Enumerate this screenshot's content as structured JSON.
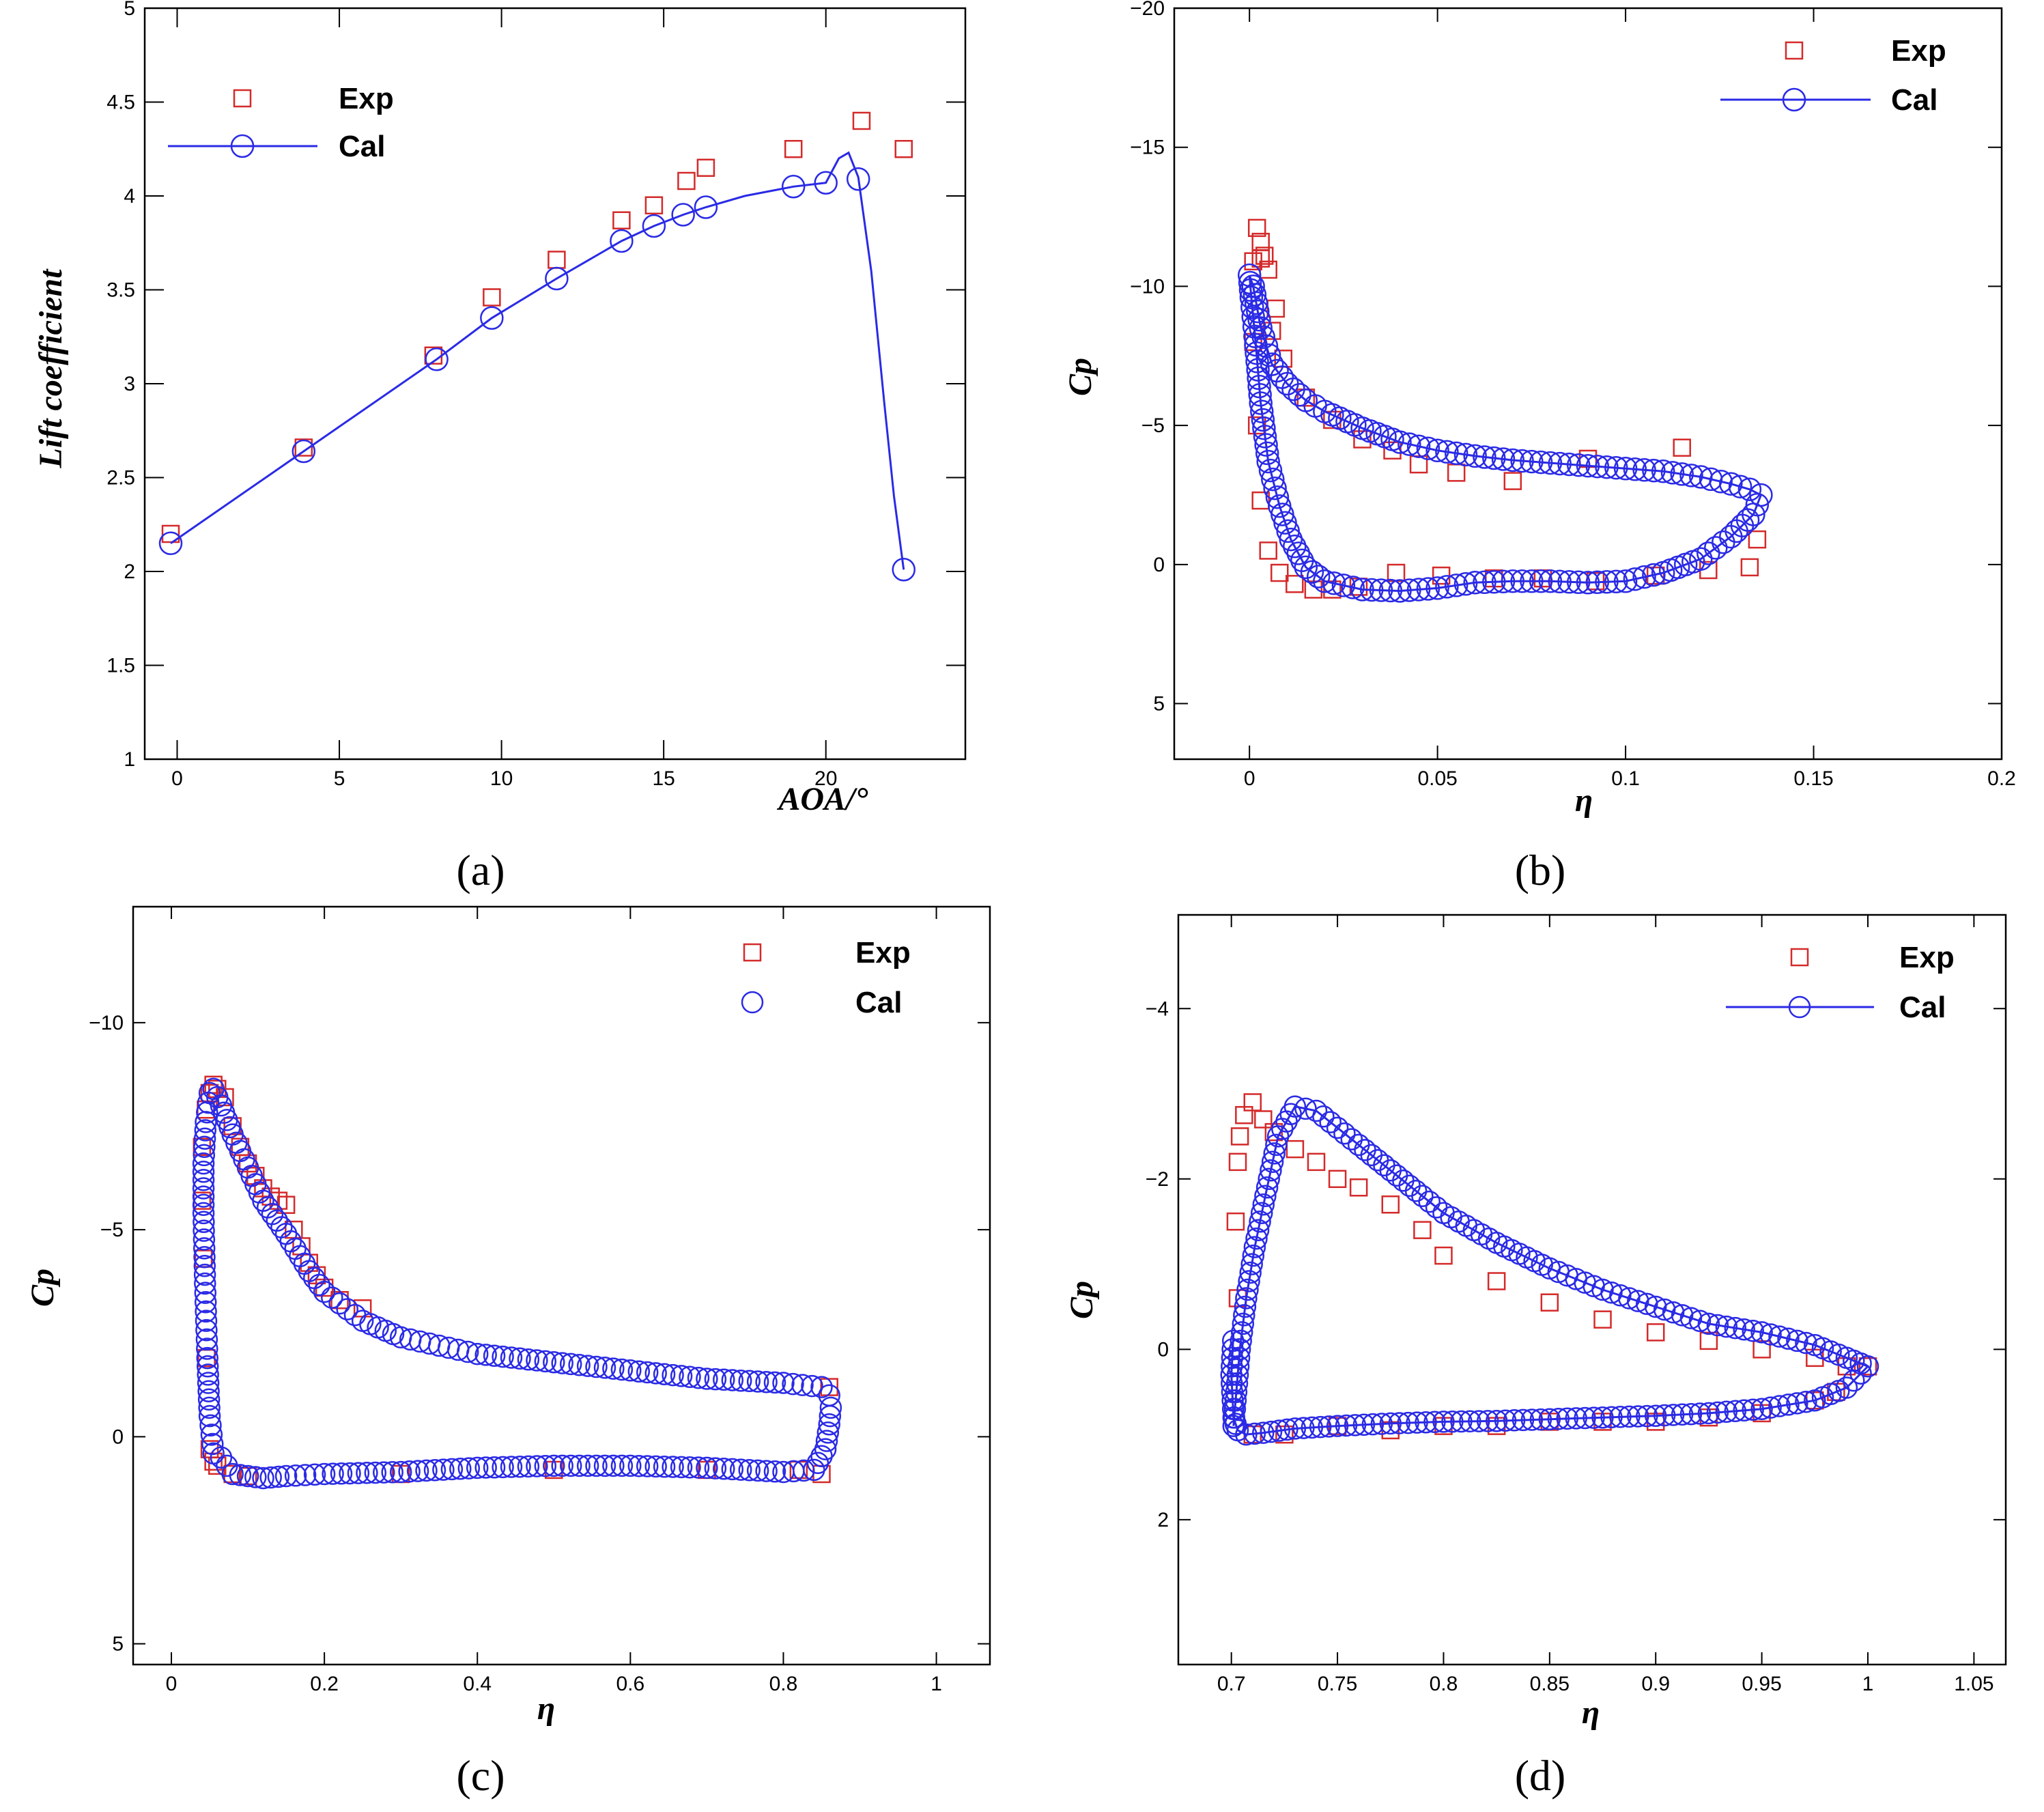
{
  "colors": {
    "exp": "#d42a2a",
    "cal": "#2a2ae6",
    "axis": "#000000"
  },
  "chart_data": [
    {
      "id": "a",
      "type": "scatter",
      "panel_label": "(a)",
      "xlabel": "AOA/°",
      "ylabel": "Lift coefficient",
      "xlim": [
        -1,
        24.3
      ],
      "ylim": [
        1,
        5
      ],
      "xticks": [
        0,
        5,
        10,
        15,
        20
      ],
      "yticks": [
        1,
        1.5,
        2,
        2.5,
        3,
        3.5,
        4,
        4.5,
        5
      ],
      "xtick_labels": [
        "0",
        "5",
        "10",
        "15",
        "20"
      ],
      "ytick_labels": [
        "1",
        "1.5",
        "2",
        "2.5",
        "3",
        "3.5",
        "4",
        "4.5",
        "5"
      ],
      "legend_position": "top-left",
      "series": [
        {
          "name": "Exp",
          "style": "square",
          "x": [
            -0.2,
            3.9,
            7.9,
            9.7,
            11.7,
            13.7,
            14.7,
            15.7,
            16.3,
            19.0,
            21.1,
            22.4
          ],
          "y": [
            2.2,
            2.66,
            3.15,
            3.46,
            3.66,
            3.87,
            3.95,
            4.08,
            4.15,
            4.25,
            4.4,
            4.25
          ]
        },
        {
          "name": "Cal",
          "style": "circle-line",
          "x": [
            -0.2,
            3.9,
            8.0,
            9.7,
            11.7,
            13.7,
            14.7,
            15.6,
            16.3,
            19.0,
            20.0,
            21.0,
            22.4
          ],
          "y": [
            2.15,
            2.64,
            3.13,
            3.35,
            3.56,
            3.76,
            3.84,
            3.9,
            3.94,
            4.05,
            4.07,
            4.09,
            2.01
          ],
          "line_x": [
            -0.2,
            3.9,
            8.0,
            9.7,
            11.7,
            13.7,
            14.7,
            15.6,
            16.3,
            17.5,
            19.0,
            20.0,
            20.4,
            20.7,
            21.0,
            21.4,
            21.8,
            22.1,
            22.4
          ],
          "line_y": [
            2.15,
            2.64,
            3.13,
            3.35,
            3.56,
            3.76,
            3.84,
            3.9,
            3.94,
            4.0,
            4.05,
            4.07,
            4.2,
            4.23,
            4.1,
            3.6,
            2.9,
            2.4,
            2.01
          ]
        }
      ]
    },
    {
      "id": "b",
      "type": "scatter",
      "panel_label": "(b)",
      "xlabel": "η",
      "ylabel": "Cp",
      "xlim": [
        -0.02,
        0.2
      ],
      "ylim": [
        -20,
        7
      ],
      "y_inverted": true,
      "xticks": [
        0,
        0.05,
        0.1,
        0.15,
        0.2
      ],
      "yticks": [
        -20,
        -15,
        -10,
        -5,
        0,
        5
      ],
      "xtick_labels": [
        "0",
        "0.05",
        "0.1",
        "0.15",
        "0.2"
      ],
      "ytick_labels": [
        "−20",
        "−15",
        "−10",
        "−5",
        "0",
        "5"
      ],
      "legend_position": "top-right",
      "series": [
        {
          "name": "Exp",
          "style": "square",
          "x": [
            0.002,
            0.003,
            0.004,
            0.005,
            0.007,
            0.001,
            0.001,
            0.002,
            0.003,
            0.005,
            0.008,
            0.012,
            0.017,
            0.022,
            0.029,
            0.039,
            0.051,
            0.065,
            0.078,
            0.092,
            0.108,
            0.122,
            0.133,
            0.135,
            0.003,
            0.006,
            0.009,
            0.015,
            0.022,
            0.03,
            0.038,
            0.045,
            0.055,
            0.07,
            0.09,
            0.115
          ],
          "y": [
            -12.1,
            -11.6,
            -11.1,
            -10.6,
            -9.2,
            -10.9,
            -8.0,
            -5.0,
            -2.3,
            -0.5,
            0.3,
            0.7,
            0.9,
            0.9,
            0.8,
            0.3,
            0.4,
            0.5,
            0.5,
            0.6,
            0.4,
            0.2,
            0.1,
            -0.9,
            -11.0,
            -8.4,
            -7.4,
            -6.0,
            -5.2,
            -4.5,
            -4.1,
            -3.6,
            -3.3,
            -3.0,
            -3.8,
            -4.2
          ]
        },
        {
          "name": "Cal",
          "style": "circle-line",
          "closed_loop": true,
          "x": [
            0.0,
            0.001,
            0.003,
            0.006,
            0.01,
            0.015,
            0.02,
            0.03,
            0.04,
            0.05,
            0.06,
            0.07,
            0.08,
            0.09,
            0.1,
            0.11,
            0.12,
            0.128,
            0.133,
            0.136,
            0.134,
            0.128,
            0.12,
            0.11,
            0.1,
            0.09,
            0.08,
            0.07,
            0.06,
            0.05,
            0.04,
            0.03,
            0.02,
            0.015,
            0.011,
            0.008,
            0.005,
            0.003,
            0.0015,
            0.0005,
            0.0
          ],
          "y": [
            -10.4,
            -10.0,
            -8.5,
            -7.2,
            -6.5,
            -5.9,
            -5.5,
            -4.9,
            -4.4,
            -4.1,
            -3.9,
            -3.75,
            -3.65,
            -3.55,
            -3.45,
            -3.35,
            -3.15,
            -2.9,
            -2.7,
            -2.5,
            -1.8,
            -1.0,
            -0.2,
            0.3,
            0.6,
            0.65,
            0.6,
            0.6,
            0.65,
            0.85,
            0.95,
            0.9,
            0.6,
            0.1,
            -0.9,
            -2.1,
            -3.7,
            -5.8,
            -8.2,
            -9.6,
            -10.4
          ]
        }
      ]
    },
    {
      "id": "c",
      "type": "scatter",
      "panel_label": "(c)",
      "xlabel": "η",
      "ylabel": "Cp",
      "xlim": [
        -0.05,
        1.07
      ],
      "ylim": [
        -12.8,
        5.5
      ],
      "y_inverted": true,
      "xticks": [
        0,
        0.2,
        0.4,
        0.6,
        0.8,
        1
      ],
      "yticks": [
        -10,
        -5,
        0,
        5
      ],
      "xtick_labels": [
        "0",
        "0.2",
        "0.4",
        "0.6",
        "0.8",
        "1"
      ],
      "ytick_labels": [
        "−10",
        "−5",
        "0",
        "5"
      ],
      "legend_position": "top-right",
      "series": [
        {
          "name": "Exp",
          "style": "square",
          "x": [
            0.04,
            0.045,
            0.05,
            0.055,
            0.06,
            0.07,
            0.08,
            0.09,
            0.1,
            0.11,
            0.12,
            0.13,
            0.14,
            0.15,
            0.16,
            0.17,
            0.18,
            0.19,
            0.2,
            0.22,
            0.25,
            0.04,
            0.042,
            0.046,
            0.05,
            0.055,
            0.06,
            0.08,
            0.1,
            0.3,
            0.5,
            0.7,
            0.82,
            0.85,
            0.86
          ],
          "y": [
            -7.0,
            -7.9,
            -8.3,
            -8.5,
            -8.4,
            -8.2,
            -7.5,
            -7.0,
            -6.6,
            -6.3,
            -6.0,
            -5.8,
            -5.7,
            -5.6,
            -5.0,
            -4.6,
            -4.2,
            -3.9,
            -3.6,
            -3.3,
            -3.1,
            -5.7,
            -4.3,
            -1.9,
            0.3,
            0.6,
            0.7,
            0.9,
            0.95,
            0.9,
            0.8,
            0.8,
            0.8,
            0.9,
            -1.2
          ]
        },
        {
          "name": "Cal",
          "style": "circle",
          "closed_loop": true,
          "x": [
            0.042,
            0.045,
            0.05,
            0.055,
            0.065,
            0.08,
            0.1,
            0.12,
            0.15,
            0.18,
            0.2,
            0.25,
            0.3,
            0.35,
            0.4,
            0.5,
            0.6,
            0.7,
            0.8,
            0.85,
            0.86,
            0.862,
            0.86,
            0.855,
            0.84,
            0.8,
            0.7,
            0.6,
            0.5,
            0.4,
            0.3,
            0.2,
            0.15,
            0.12,
            0.1,
            0.08,
            0.065,
            0.055,
            0.05,
            0.047,
            0.044,
            0.042,
            0.042
          ],
          "y": [
            -6.6,
            -7.6,
            -8.3,
            -8.4,
            -8.0,
            -7.3,
            -6.5,
            -5.7,
            -4.9,
            -4.0,
            -3.5,
            -2.8,
            -2.4,
            -2.2,
            -2.0,
            -1.8,
            -1.6,
            -1.4,
            -1.3,
            -1.2,
            -1.0,
            -0.7,
            -0.3,
            0.3,
            0.8,
            0.85,
            0.75,
            0.7,
            0.7,
            0.75,
            0.85,
            0.9,
            0.95,
            1.0,
            0.95,
            0.9,
            0.5,
            0.4,
            -0.5,
            -1.9,
            -3.7,
            -5.4,
            -6.6
          ]
        }
      ]
    },
    {
      "id": "d",
      "type": "scatter",
      "panel_label": "(d)",
      "xlabel": "η",
      "ylabel": "Cp",
      "xlim": [
        0.675,
        1.065
      ],
      "ylim": [
        -5.1,
        3.7
      ],
      "y_inverted": true,
      "xticks": [
        0.7,
        0.75,
        0.8,
        0.85,
        0.9,
        0.95,
        1,
        1.05
      ],
      "yticks": [
        -4,
        -2,
        0,
        2
      ],
      "xtick_labels": [
        "0.7",
        "0.75",
        "0.8",
        "0.85",
        "0.9",
        "0.95",
        "1",
        "1.05"
      ],
      "ytick_labels": [
        "−4",
        "−2",
        "0",
        "2"
      ],
      "legend_position": "top-right",
      "series": [
        {
          "name": "Exp",
          "style": "square",
          "x": [
            0.702,
            0.703,
            0.704,
            0.706,
            0.71,
            0.715,
            0.72,
            0.73,
            0.74,
            0.75,
            0.76,
            0.775,
            0.79,
            0.8,
            0.825,
            0.85,
            0.875,
            0.9,
            0.925,
            0.95,
            0.975,
            0.99,
            1.0,
            0.703,
            0.71,
            0.725,
            0.75,
            0.775,
            0.8,
            0.825,
            0.85,
            0.875,
            0.9,
            0.925,
            0.95,
            0.975,
            0.985
          ],
          "y": [
            -1.5,
            -2.2,
            -2.5,
            -2.75,
            -2.9,
            -2.7,
            -2.55,
            -2.35,
            -2.2,
            -2.0,
            -1.9,
            -1.7,
            -1.4,
            -1.1,
            -0.8,
            -0.55,
            -0.35,
            -0.2,
            -0.1,
            0.0,
            0.1,
            0.2,
            0.2,
            -0.6,
            1.0,
            1.0,
            0.9,
            0.95,
            0.9,
            0.9,
            0.85,
            0.85,
            0.85,
            0.8,
            0.75,
            0.6,
            0.5
          ]
        },
        {
          "name": "Cal",
          "style": "circle-line",
          "closed_loop": true,
          "x": [
            0.701,
            0.702,
            0.704,
            0.707,
            0.711,
            0.716,
            0.722,
            0.73,
            0.74,
            0.75,
            0.76,
            0.775,
            0.79,
            0.8,
            0.825,
            0.85,
            0.875,
            0.9,
            0.925,
            0.95,
            0.975,
            0.99,
            1.0,
            0.99,
            0.975,
            0.95,
            0.925,
            0.9,
            0.875,
            0.85,
            0.825,
            0.8,
            0.775,
            0.75,
            0.73,
            0.715,
            0.707,
            0.703,
            0.701,
            0.7,
            0.701
          ],
          "y": [
            0.9,
            0.6,
            0.0,
            -0.6,
            -1.2,
            -1.8,
            -2.5,
            -2.85,
            -2.8,
            -2.6,
            -2.4,
            -2.1,
            -1.8,
            -1.6,
            -1.25,
            -0.95,
            -0.7,
            -0.5,
            -0.3,
            -0.2,
            -0.05,
            0.1,
            0.2,
            0.45,
            0.6,
            0.7,
            0.75,
            0.78,
            0.8,
            0.82,
            0.84,
            0.85,
            0.87,
            0.9,
            0.93,
            0.98,
            1.0,
            0.95,
            0.8,
            0.3,
            -0.2
          ]
        }
      ]
    }
  ]
}
